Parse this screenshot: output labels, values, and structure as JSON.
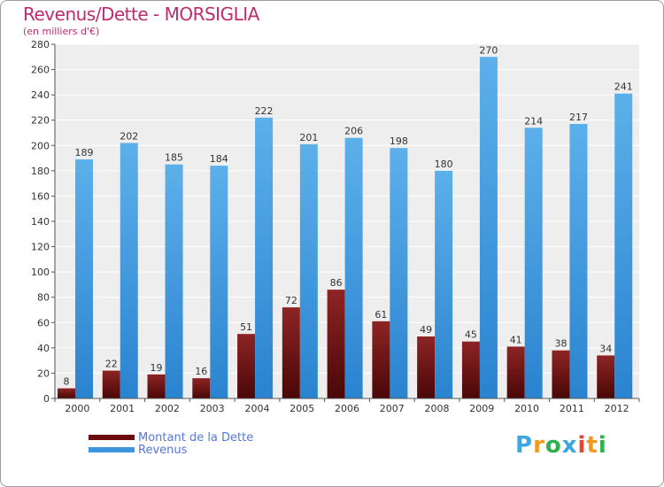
{
  "header": {
    "title": "Revenus/Dette - MORSIGLIA",
    "subtitle": "(en milliers d'€)"
  },
  "chart_data": {
    "type": "bar",
    "title": "Revenus/Dette - MORSIGLIA",
    "ylabel": "(en milliers d'€)",
    "xlabel": "",
    "ylim": [
      0,
      280
    ],
    "yticks": [
      0,
      20,
      40,
      60,
      80,
      100,
      120,
      140,
      160,
      180,
      200,
      220,
      240,
      260,
      280
    ],
    "grid": true,
    "categories": [
      "2000",
      "2001",
      "2002",
      "2003",
      "2004",
      "2005",
      "2006",
      "2007",
      "2008",
      "2009",
      "2010",
      "2011",
      "2012"
    ],
    "series": [
      {
        "name": "Montant de la Dette",
        "color": "#7a1a1a",
        "values": [
          8,
          22,
          19,
          16,
          51,
          72,
          86,
          61,
          49,
          45,
          41,
          38,
          34
        ]
      },
      {
        "name": "Revenus",
        "color": "#4a9fe0",
        "values": [
          189,
          202,
          185,
          184,
          222,
          201,
          206,
          198,
          180,
          270,
          214,
          217,
          241
        ]
      }
    ],
    "legend_position": "bottom-left"
  },
  "legend": {
    "items": [
      {
        "label": "Montant de la Dette",
        "color": "#6b0d0d"
      },
      {
        "label": "Revenus",
        "color": "#3f95dd"
      }
    ]
  },
  "logo": {
    "letters": [
      "P",
      "r",
      "o",
      "x",
      "i",
      "t",
      "i"
    ],
    "colors": [
      "#3fa7e0",
      "#f39a1e",
      "#2fb04a",
      "#3fa7e0",
      "#e8452c",
      "#f39a1e",
      "#2fb04a"
    ]
  }
}
